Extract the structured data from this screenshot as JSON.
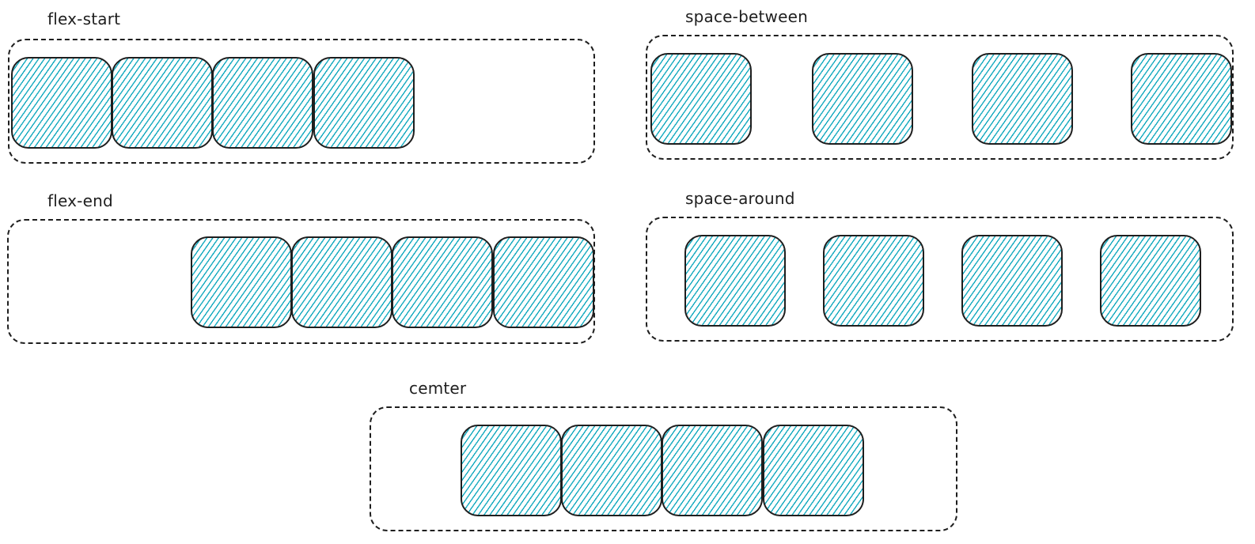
{
  "style": {
    "hatch_color": "#15aabf",
    "stroke_color": "#1e1e1e"
  },
  "diagram": {
    "panels": [
      {
        "id": "flex-start",
        "label": "flex-start",
        "item_count": 4
      },
      {
        "id": "space-between",
        "label": "space-between",
        "item_count": 4
      },
      {
        "id": "flex-end",
        "label": "flex-end",
        "item_count": 4
      },
      {
        "id": "space-around",
        "label": "space-around",
        "item_count": 4
      },
      {
        "id": "center",
        "label": "cemter",
        "item_count": 4
      }
    ]
  }
}
